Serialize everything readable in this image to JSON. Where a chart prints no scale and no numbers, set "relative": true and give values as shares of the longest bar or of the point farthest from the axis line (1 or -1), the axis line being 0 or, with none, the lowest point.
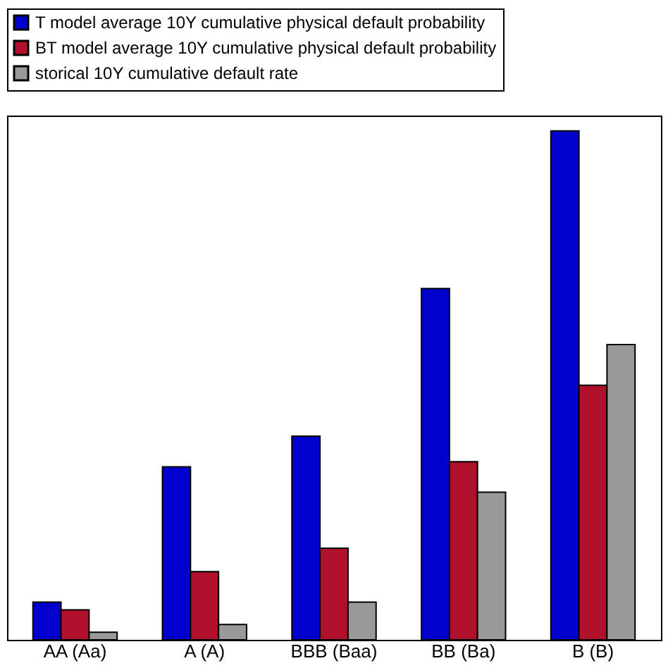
{
  "chart_data": {
    "type": "bar",
    "relative": true,
    "categories": [
      "AA (Aa)",
      "A (A)",
      "BBB (Baa)",
      "BB (Ba)",
      "B (B)"
    ],
    "series": [
      {
        "name": "T model average 10Y cumulative physical default probability",
        "color": "#0000cc",
        "values": [
          0.074,
          0.34,
          0.4,
          0.69,
          1
        ]
      },
      {
        "name": "BT model average 10Y cumulative physical default probability",
        "color": "#b0102a",
        "values": [
          0.059,
          0.134,
          0.18,
          0.35,
          0.5
        ]
      },
      {
        "name": "storical 10Y cumulative default rate",
        "color": "#999999",
        "values": [
          0.015,
          0.03,
          0.074,
          0.29,
          0.58
        ]
      }
    ],
    "legend": "top",
    "grid": false
  }
}
